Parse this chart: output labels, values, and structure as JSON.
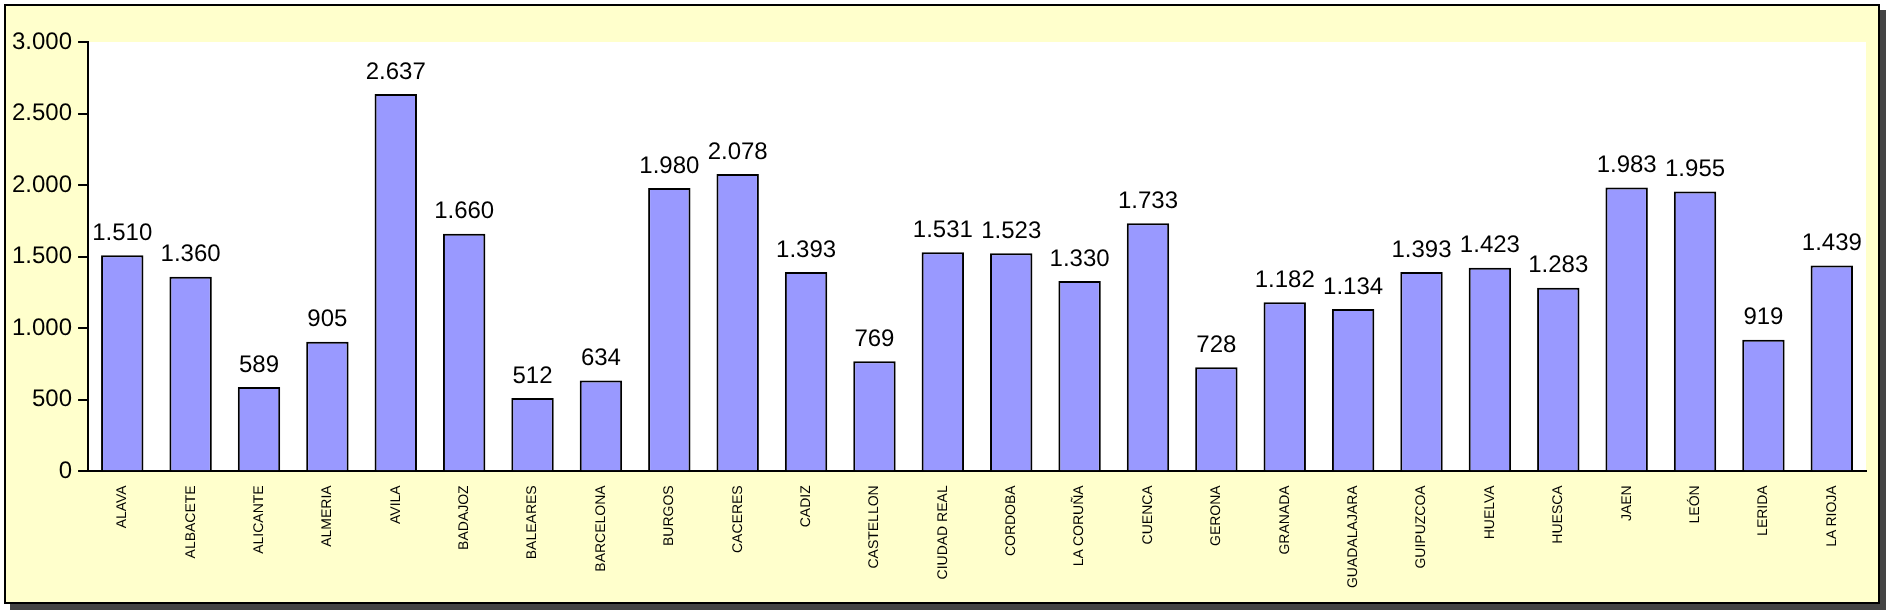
{
  "chart_data": {
    "type": "bar",
    "categories": [
      "ALAVA",
      "ALBACETE",
      "ALICANTE",
      "ALMERIA",
      "AVILA",
      "BADAJOZ",
      "BALEARES",
      "BARCELONA",
      "BURGOS",
      "CACERES",
      "CADIZ",
      "CASTELLON",
      "CIUDAD REAL",
      "CORDOBA",
      "LA CORUÑA",
      "CUENCA",
      "GERONA",
      "GRANADA",
      "GUADALAJARA",
      "GUIPUZCOA",
      "HUELVA",
      "HUESCA",
      "JAEN",
      "LEÓN",
      "LERIDA",
      "LA RIOJA"
    ],
    "values": [
      1510,
      1360,
      589,
      905,
      2637,
      1660,
      512,
      634,
      1980,
      2078,
      1393,
      769,
      1531,
      1523,
      1330,
      1733,
      728,
      1182,
      1134,
      1393,
      1423,
      1283,
      1983,
      1955,
      919,
      1439
    ],
    "value_labels": [
      "1.510",
      "1.360",
      "589",
      "905",
      "2.637",
      "1.660",
      "512",
      "634",
      "1.980",
      "2.078",
      "1.393",
      "769",
      "1.531",
      "1.523",
      "1.330",
      "1.733",
      "728",
      "1.182",
      "1.134",
      "1.393",
      "1.423",
      "1.283",
      "1.983",
      "1.955",
      "919",
      "1.439"
    ],
    "color": "#9999ff",
    "ylim": [
      0,
      3000
    ],
    "yticks": [
      0,
      {
        "value": 500,
        "label": "500"
      },
      {
        "value": 1000,
        "label": "1.000"
      },
      {
        "value": 1500,
        "label": "1.500"
      },
      {
        "value": 2000,
        "label": "2.000"
      },
      {
        "value": 2500,
        "label": "2.500"
      },
      {
        "value": 3000,
        "label": "3.000"
      }
    ],
    "grid": false,
    "legend": false
  }
}
